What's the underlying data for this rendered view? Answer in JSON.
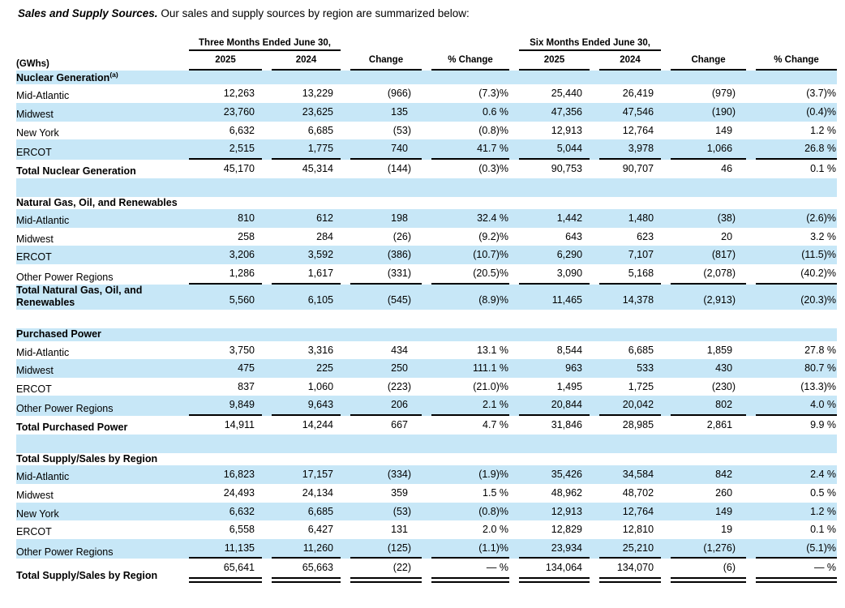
{
  "intro": {
    "bold": "Sales and Supply Sources.",
    "rest": " Our sales and supply sources by region are summarized below:"
  },
  "colors": {
    "row_stripe": "#c7e7f7",
    "rule": "#000000"
  },
  "table": {
    "unit_label": "(GWhs)",
    "col_groups": [
      {
        "label": "Three Months Ended June 30,"
      },
      {
        "label": "Six Months Ended June 30,"
      }
    ],
    "sub_headers": [
      "2025",
      "2024",
      "Change",
      "% Change",
      "2025",
      "2024",
      "Change",
      "% Change"
    ],
    "rows": [
      {
        "type": "section",
        "label": "Nuclear Generation",
        "sup": "(a)",
        "bg": "blue"
      },
      {
        "type": "data",
        "label": "Mid-Atlantic",
        "bg": "white",
        "values": [
          "12,263",
          "13,229",
          "(966)",
          "(7.3)%",
          "25,440",
          "26,419",
          "(979)",
          "(3.7)%"
        ]
      },
      {
        "type": "data",
        "label": "Midwest",
        "bg": "blue",
        "values": [
          "23,760",
          "23,625",
          "135",
          "0.6 %",
          "47,356",
          "47,546",
          "(190)",
          "(0.4)%"
        ]
      },
      {
        "type": "data",
        "label": "New York",
        "bg": "white",
        "values": [
          "6,632",
          "6,685",
          "(53)",
          "(0.8)%",
          "12,913",
          "12,764",
          "149",
          "1.2 %"
        ]
      },
      {
        "type": "data",
        "label": "ERCOT",
        "bg": "blue",
        "rule": true,
        "values": [
          "2,515",
          "1,775",
          "740",
          "41.7 %",
          "5,044",
          "3,978",
          "1,066",
          "26.8 %"
        ]
      },
      {
        "type": "total",
        "label": "Total Nuclear Generation",
        "bg": "white",
        "values": [
          "45,170",
          "45,314",
          "(144)",
          "(0.3)%",
          "90,753",
          "90,707",
          "46",
          "0.1 %"
        ]
      },
      {
        "type": "spacer",
        "bg": "blue"
      },
      {
        "type": "section",
        "label": "Natural Gas, Oil, and Renewables",
        "bg": "white"
      },
      {
        "type": "data",
        "label": "Mid-Atlantic",
        "bg": "blue",
        "values": [
          "810",
          "612",
          "198",
          "32.4 %",
          "1,442",
          "1,480",
          "(38)",
          "(2.6)%"
        ]
      },
      {
        "type": "data",
        "label": "Midwest",
        "bg": "white",
        "values": [
          "258",
          "284",
          "(26)",
          "(9.2)%",
          "643",
          "623",
          "20",
          "3.2 %"
        ]
      },
      {
        "type": "data",
        "label": "ERCOT",
        "bg": "blue",
        "values": [
          "3,206",
          "3,592",
          "(386)",
          "(10.7)%",
          "6,290",
          "7,107",
          "(817)",
          "(11.5)%"
        ]
      },
      {
        "type": "data",
        "label": "Other Power Regions",
        "bg": "white",
        "rule": true,
        "values": [
          "1,286",
          "1,617",
          "(331)",
          "(20.5)%",
          "3,090",
          "5,168",
          "(2,078)",
          "(40.2)%"
        ]
      },
      {
        "type": "total",
        "label": "Total Natural Gas, Oil, and Renewables",
        "bg": "blue",
        "values": [
          "5,560",
          "6,105",
          "(545)",
          "(8.9)%",
          "11,465",
          "14,378",
          "(2,913)",
          "(20.3)%"
        ]
      },
      {
        "type": "spacer",
        "bg": "white"
      },
      {
        "type": "section",
        "label": "Purchased Power",
        "bg": "blue"
      },
      {
        "type": "data",
        "label": "Mid-Atlantic",
        "bg": "white",
        "values": [
          "3,750",
          "3,316",
          "434",
          "13.1 %",
          "8,544",
          "6,685",
          "1,859",
          "27.8 %"
        ]
      },
      {
        "type": "data",
        "label": "Midwest",
        "bg": "blue",
        "values": [
          "475",
          "225",
          "250",
          "111.1 %",
          "963",
          "533",
          "430",
          "80.7 %"
        ]
      },
      {
        "type": "data",
        "label": "ERCOT",
        "bg": "white",
        "values": [
          "837",
          "1,060",
          "(223)",
          "(21.0)%",
          "1,495",
          "1,725",
          "(230)",
          "(13.3)%"
        ]
      },
      {
        "type": "data",
        "label": "Other Power Regions",
        "bg": "blue",
        "rule": true,
        "values": [
          "9,849",
          "9,643",
          "206",
          "2.1 %",
          "20,844",
          "20,042",
          "802",
          "4.0 %"
        ]
      },
      {
        "type": "total",
        "label": "Total Purchased Power",
        "bg": "white",
        "values": [
          "14,911",
          "14,244",
          "667",
          "4.7 %",
          "31,846",
          "28,985",
          "2,861",
          "9.9 %"
        ]
      },
      {
        "type": "spacer",
        "bg": "blue"
      },
      {
        "type": "section",
        "label": "Total Supply/Sales by Region",
        "bg": "white"
      },
      {
        "type": "data",
        "label": "Mid-Atlantic",
        "bg": "blue",
        "values": [
          "16,823",
          "17,157",
          "(334)",
          "(1.9)%",
          "35,426",
          "34,584",
          "842",
          "2.4 %"
        ]
      },
      {
        "type": "data",
        "label": "Midwest",
        "bg": "white",
        "values": [
          "24,493",
          "24,134",
          "359",
          "1.5 %",
          "48,962",
          "48,702",
          "260",
          "0.5 %"
        ]
      },
      {
        "type": "data",
        "label": "New York",
        "bg": "blue",
        "values": [
          "6,632",
          "6,685",
          "(53)",
          "(0.8)%",
          "12,913",
          "12,764",
          "149",
          "1.2 %"
        ]
      },
      {
        "type": "data",
        "label": "ERCOT",
        "bg": "white",
        "values": [
          "6,558",
          "6,427",
          "131",
          "2.0 %",
          "12,829",
          "12,810",
          "19",
          "0.1 %"
        ]
      },
      {
        "type": "data",
        "label": "Other Power Regions",
        "bg": "blue",
        "rule": true,
        "values": [
          "11,135",
          "11,260",
          "(125)",
          "(1.1)%",
          "23,934",
          "25,210",
          "(1,276)",
          "(5.1)%"
        ]
      },
      {
        "type": "total",
        "label": "Total Supply/Sales by Region",
        "grand": true,
        "double_rule": true,
        "bg": "white",
        "values": [
          "65,641",
          "65,663",
          "(22)",
          "— %",
          "134,064",
          "134,070",
          "(6)",
          "— %"
        ]
      }
    ]
  }
}
